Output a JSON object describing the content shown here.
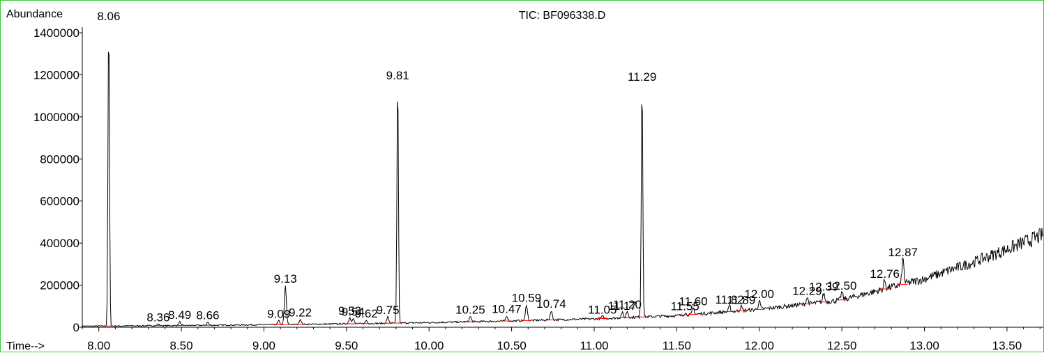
{
  "chart_data": {
    "type": "line",
    "title": "TIC: BF096338.D",
    "ylabel": "Abundance",
    "xlabel": "Time-->",
    "xlim": [
      7.9,
      13.72
    ],
    "ylim": [
      0,
      1500000
    ],
    "x_ticks": [
      8.0,
      8.5,
      9.0,
      9.5,
      10.0,
      10.5,
      11.0,
      11.5,
      12.0,
      12.5,
      13.0,
      13.5
    ],
    "x_tick_labels": [
      "8.00",
      "8.50",
      "9.00",
      "9.50",
      "10.00",
      "10.50",
      "11.00",
      "11.50",
      "12.00",
      "12.50",
      "13.00",
      "13.50"
    ],
    "y_ticks": [
      0,
      200000,
      400000,
      600000,
      800000,
      1000000,
      1200000,
      1400000
    ],
    "y_tick_labels": [
      "0",
      "200000",
      "400000",
      "600000",
      "800000",
      "1000000",
      "1200000",
      "1400000"
    ],
    "line_color": "#000000",
    "integration_mark_color": "#ff0000",
    "frame_color": "#33cc33",
    "baseline": [
      {
        "x": 7.9,
        "y": 5000
      },
      {
        "x": 8.5,
        "y": 8000
      },
      {
        "x": 9.0,
        "y": 12000
      },
      {
        "x": 9.5,
        "y": 16000
      },
      {
        "x": 10.0,
        "y": 22000
      },
      {
        "x": 10.5,
        "y": 30000
      },
      {
        "x": 11.0,
        "y": 40000
      },
      {
        "x": 11.5,
        "y": 55000
      },
      {
        "x": 12.0,
        "y": 85000
      },
      {
        "x": 12.5,
        "y": 130000
      },
      {
        "x": 13.0,
        "y": 230000
      },
      {
        "x": 13.3,
        "y": 310000
      },
      {
        "x": 13.5,
        "y": 370000
      },
      {
        "x": 13.72,
        "y": 440000
      }
    ],
    "peaks": [
      {
        "label": "8.06",
        "x": 8.06,
        "height": 1440000
      },
      {
        "label": "8.36",
        "x": 8.36,
        "height": 8000
      },
      {
        "label": "8.49",
        "x": 8.49,
        "height": 18000
      },
      {
        "label": "8.66",
        "x": 8.66,
        "height": 15000
      },
      {
        "label": "9.09",
        "x": 9.09,
        "height": 18000
      },
      {
        "label": "9.13",
        "x": 9.13,
        "height": 185000
      },
      {
        "label": "9.22",
        "x": 9.22,
        "height": 25000
      },
      {
        "label": "9.52",
        "x": 9.52,
        "height": 30000
      },
      {
        "label": "9.54",
        "x": 9.54,
        "height": 25000
      },
      {
        "label": "9.62",
        "x": 9.62,
        "height": 15000
      },
      {
        "label": "9.75",
        "x": 9.75,
        "height": 30000
      },
      {
        "label": "9.81",
        "x": 9.81,
        "height": 1145000
      },
      {
        "label": "10.25",
        "x": 10.25,
        "height": 25000
      },
      {
        "label": "10.47",
        "x": 10.47,
        "height": 25000
      },
      {
        "label": "10.59",
        "x": 10.59,
        "height": 75000
      },
      {
        "label": "10.74",
        "x": 10.74,
        "height": 45000
      },
      {
        "label": "11.05",
        "x": 11.05,
        "height": 10000
      },
      {
        "label": "11.17",
        "x": 11.17,
        "height": 25000
      },
      {
        "label": "11.20",
        "x": 11.2,
        "height": 30000
      },
      {
        "label": "11.29",
        "x": 11.29,
        "height": 1110000
      },
      {
        "label": "11.55",
        "x": 11.55,
        "height": 10000
      },
      {
        "label": "11.60",
        "x": 11.6,
        "height": 30000
      },
      {
        "label": "11.82",
        "x": 11.82,
        "height": 25000
      },
      {
        "label": "11.89",
        "x": 11.89,
        "height": 20000
      },
      {
        "label": "12.00",
        "x": 12.0,
        "height": 40000
      },
      {
        "label": "12.29",
        "x": 12.29,
        "height": 30000
      },
      {
        "label": "12.39",
        "x": 12.39,
        "height": 40000
      },
      {
        "label": "12.50",
        "x": 12.5,
        "height": 35000
      },
      {
        "label": "12.76",
        "x": 12.76,
        "height": 40000
      },
      {
        "label": "12.87",
        "x": 12.87,
        "height": 120000
      }
    ]
  }
}
